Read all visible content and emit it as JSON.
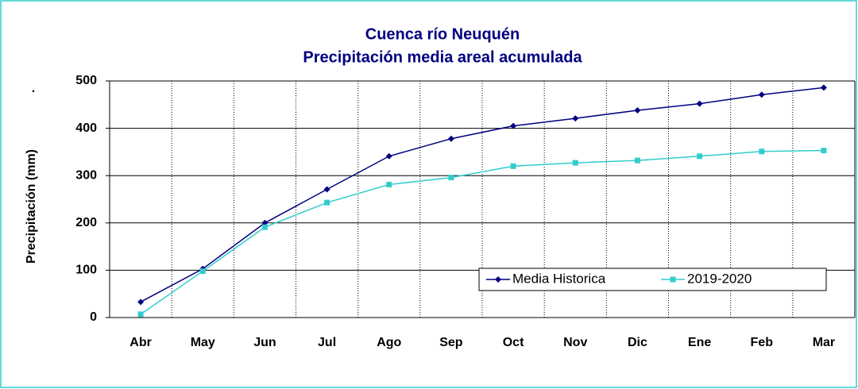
{
  "chart_data": {
    "type": "line",
    "title": [
      "Cuenca río Neuquén",
      "Precipitación media areal acumulada"
    ],
    "annotation": ".",
    "ylabel": "Precipitación (mm)",
    "categories": [
      "Abr",
      "May",
      "Jun",
      "Jul",
      "Ago",
      "Sep",
      "Oct",
      "Nov",
      "Dic",
      "Ene",
      "Feb",
      "Mar"
    ],
    "series": [
      {
        "name": "Media Historica",
        "color": "#000080",
        "marker": "diamond",
        "values": [
          33,
          103,
          200,
          271,
          341,
          378,
          405,
          421,
          438,
          452,
          471,
          486
        ]
      },
      {
        "name": "2019-2020",
        "color": "#33cccc",
        "marker": "square",
        "values": [
          7,
          98,
          191,
          243,
          281,
          296,
          320,
          327,
          332,
          341,
          351,
          353
        ]
      }
    ],
    "ylim": [
      0,
      500
    ],
    "yticks": [
      0,
      100,
      200,
      300,
      400,
      500
    ],
    "grid": true
  }
}
